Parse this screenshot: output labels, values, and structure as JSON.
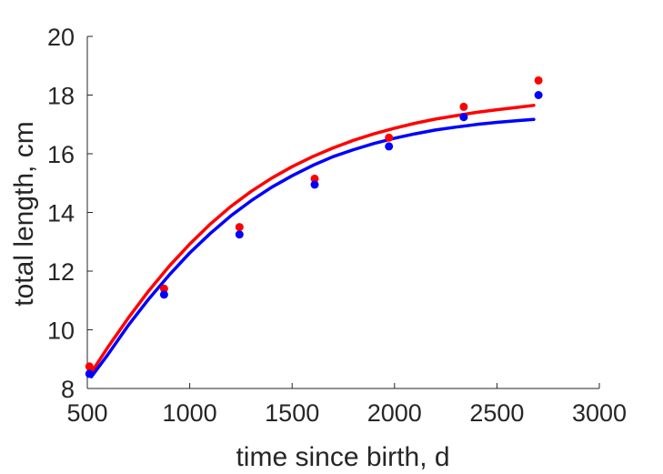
{
  "chart_data": {
    "type": "scatter",
    "xlabel": "time since birth, d",
    "ylabel": "total length, cm",
    "xlim": [
      500,
      3000
    ],
    "ylim": [
      8,
      20
    ],
    "xticks": [
      500,
      1000,
      1500,
      2000,
      2500,
      3000
    ],
    "yticks": [
      8,
      10,
      12,
      14,
      16,
      18,
      20
    ],
    "grid": false,
    "legend": "none",
    "series": [
      {
        "kind": "points",
        "color": "#ff0000",
        "x": [
          510,
          875,
          1243,
          1610,
          1973,
          2338,
          2703
        ],
        "y": [
          8.75,
          11.4,
          13.5,
          15.15,
          16.55,
          17.6,
          18.5
        ]
      },
      {
        "kind": "points",
        "color": "#0000ff",
        "x": [
          510,
          875,
          1243,
          1610,
          1973,
          2338,
          2703
        ],
        "y": [
          8.5,
          11.2,
          13.25,
          14.95,
          16.25,
          17.25,
          18.0
        ]
      },
      {
        "kind": "line",
        "color": "#ff0000",
        "x": [
          520,
          600,
          700,
          800,
          900,
          1000,
          1100,
          1200,
          1300,
          1400,
          1500,
          1600,
          1700,
          1800,
          1900,
          2000,
          2100,
          2200,
          2300,
          2400,
          2500,
          2600,
          2680
        ],
        "y": [
          8.55,
          9.4,
          10.4,
          11.33,
          12.17,
          12.92,
          13.6,
          14.2,
          14.72,
          15.17,
          15.56,
          15.9,
          16.2,
          16.46,
          16.68,
          16.87,
          17.04,
          17.18,
          17.3,
          17.41,
          17.5,
          17.58,
          17.65
        ]
      },
      {
        "kind": "line",
        "color": "#0000ff",
        "x": [
          520,
          600,
          700,
          800,
          900,
          1000,
          1100,
          1200,
          1300,
          1400,
          1500,
          1600,
          1700,
          1800,
          1900,
          2000,
          2100,
          2200,
          2300,
          2400,
          2500,
          2600,
          2680
        ],
        "y": [
          8.4,
          9.15,
          10.15,
          11.05,
          11.87,
          12.62,
          13.28,
          13.88,
          14.4,
          14.86,
          15.25,
          15.6,
          15.9,
          16.14,
          16.35,
          16.53,
          16.68,
          16.81,
          16.91,
          17.0,
          17.07,
          17.13,
          17.17
        ]
      }
    ]
  }
}
